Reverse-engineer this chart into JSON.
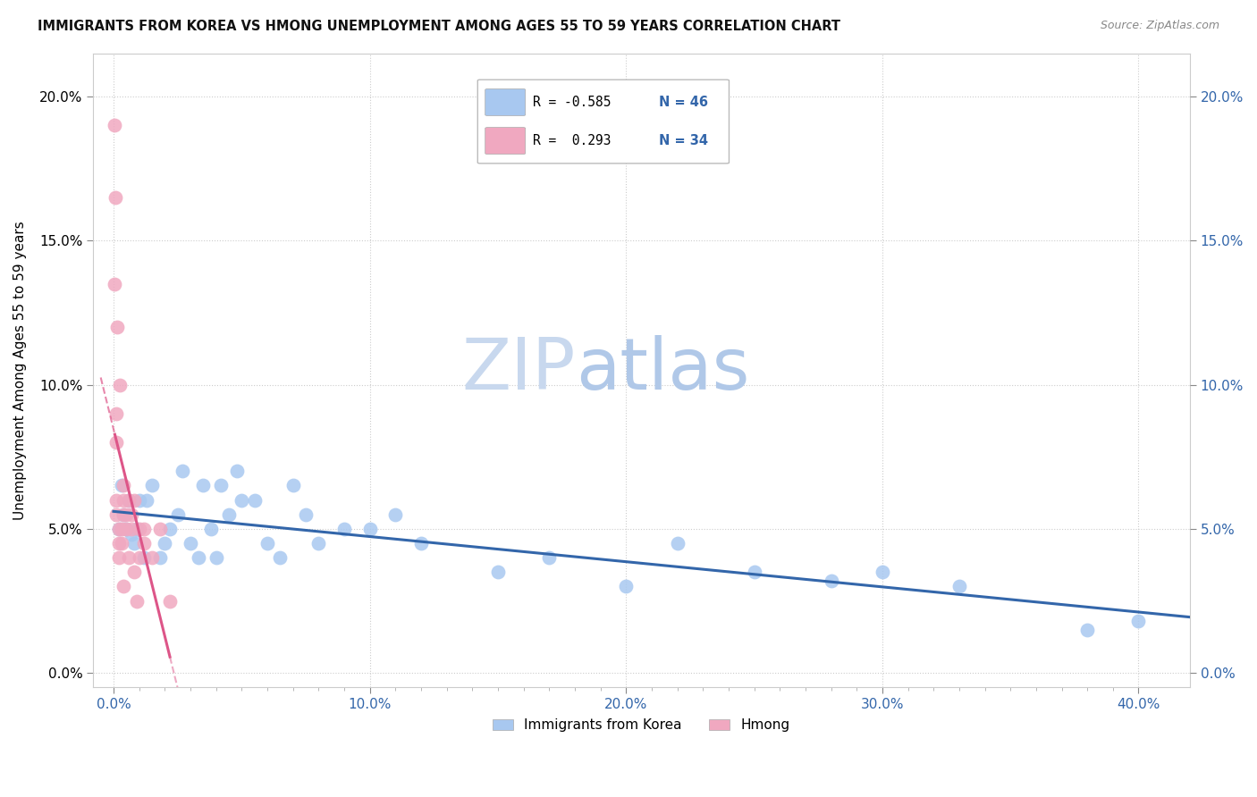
{
  "title": "IMMIGRANTS FROM KOREA VS HMONG UNEMPLOYMENT AMONG AGES 55 TO 59 YEARS CORRELATION CHART",
  "source": "Source: ZipAtlas.com",
  "ylabel": "Unemployment Among Ages 55 to 59 years",
  "xlabel_ticks": [
    "0.0%",
    "",
    "",
    "",
    "",
    "",
    "",
    "",
    "",
    "",
    "10.0%",
    "",
    "",
    "",
    "",
    "",
    "",
    "",
    "",
    "",
    "20.0%",
    "",
    "",
    "",
    "",
    "",
    "",
    "",
    "",
    "",
    "30.0%",
    "",
    "",
    "",
    "",
    "",
    "",
    "",
    "",
    "",
    "40.0%"
  ],
  "xlabel_vals": [
    0.0,
    0.01,
    0.02,
    0.03,
    0.04,
    0.05,
    0.06,
    0.07,
    0.08,
    0.09,
    0.1,
    0.11,
    0.12,
    0.13,
    0.14,
    0.15,
    0.16,
    0.17,
    0.18,
    0.19,
    0.2,
    0.21,
    0.22,
    0.23,
    0.24,
    0.25,
    0.26,
    0.27,
    0.28,
    0.29,
    0.3,
    0.31,
    0.32,
    0.33,
    0.34,
    0.35,
    0.36,
    0.37,
    0.38,
    0.39,
    0.4
  ],
  "xlabel_major_ticks": [
    0.0,
    0.1,
    0.2,
    0.3,
    0.4
  ],
  "xlabel_major_labels": [
    "0.0%",
    "10.0%",
    "20.0%",
    "30.0%",
    "40.0%"
  ],
  "ylabel_ticks": [
    0.0,
    0.05,
    0.1,
    0.15,
    0.2
  ],
  "ylabel_labels": [
    "0.0%",
    "5.0%",
    "10.0%",
    "15.0%",
    "20.0%"
  ],
  "xlim": [
    -0.008,
    0.42
  ],
  "ylim": [
    -0.005,
    0.215
  ],
  "korea_R": -0.585,
  "korea_N": 46,
  "hmong_R": 0.293,
  "hmong_N": 34,
  "korea_color": "#a8c8f0",
  "korea_line_color": "#3366aa",
  "hmong_color": "#f0a8c0",
  "hmong_line_color": "#dd5588",
  "korea_x": [
    0.002,
    0.003,
    0.004,
    0.005,
    0.006,
    0.007,
    0.008,
    0.009,
    0.01,
    0.012,
    0.013,
    0.015,
    0.018,
    0.02,
    0.022,
    0.025,
    0.027,
    0.03,
    0.033,
    0.035,
    0.038,
    0.04,
    0.042,
    0.045,
    0.048,
    0.05,
    0.055,
    0.06,
    0.065,
    0.07,
    0.075,
    0.08,
    0.09,
    0.1,
    0.11,
    0.12,
    0.15,
    0.17,
    0.2,
    0.22,
    0.25,
    0.28,
    0.3,
    0.33,
    0.38,
    0.4
  ],
  "korea_y": [
    0.05,
    0.065,
    0.055,
    0.05,
    0.06,
    0.048,
    0.045,
    0.05,
    0.06,
    0.04,
    0.06,
    0.065,
    0.04,
    0.045,
    0.05,
    0.055,
    0.07,
    0.045,
    0.04,
    0.065,
    0.05,
    0.04,
    0.065,
    0.055,
    0.07,
    0.06,
    0.06,
    0.045,
    0.04,
    0.065,
    0.055,
    0.045,
    0.05,
    0.05,
    0.055,
    0.045,
    0.035,
    0.04,
    0.03,
    0.045,
    0.035,
    0.032,
    0.035,
    0.03,
    0.015,
    0.018
  ],
  "hmong_x": [
    0.0005,
    0.0005,
    0.0008,
    0.001,
    0.001,
    0.001,
    0.001,
    0.0015,
    0.002,
    0.002,
    0.002,
    0.0025,
    0.003,
    0.003,
    0.004,
    0.004,
    0.004,
    0.004,
    0.005,
    0.005,
    0.006,
    0.006,
    0.007,
    0.007,
    0.008,
    0.008,
    0.009,
    0.01,
    0.01,
    0.012,
    0.012,
    0.015,
    0.018,
    0.022
  ],
  "hmong_y": [
    0.19,
    0.135,
    0.165,
    0.09,
    0.08,
    0.06,
    0.055,
    0.12,
    0.05,
    0.045,
    0.04,
    0.1,
    0.05,
    0.045,
    0.065,
    0.06,
    0.055,
    0.03,
    0.055,
    0.05,
    0.06,
    0.04,
    0.055,
    0.05,
    0.06,
    0.035,
    0.025,
    0.05,
    0.04,
    0.05,
    0.045,
    0.04,
    0.05,
    0.025
  ]
}
